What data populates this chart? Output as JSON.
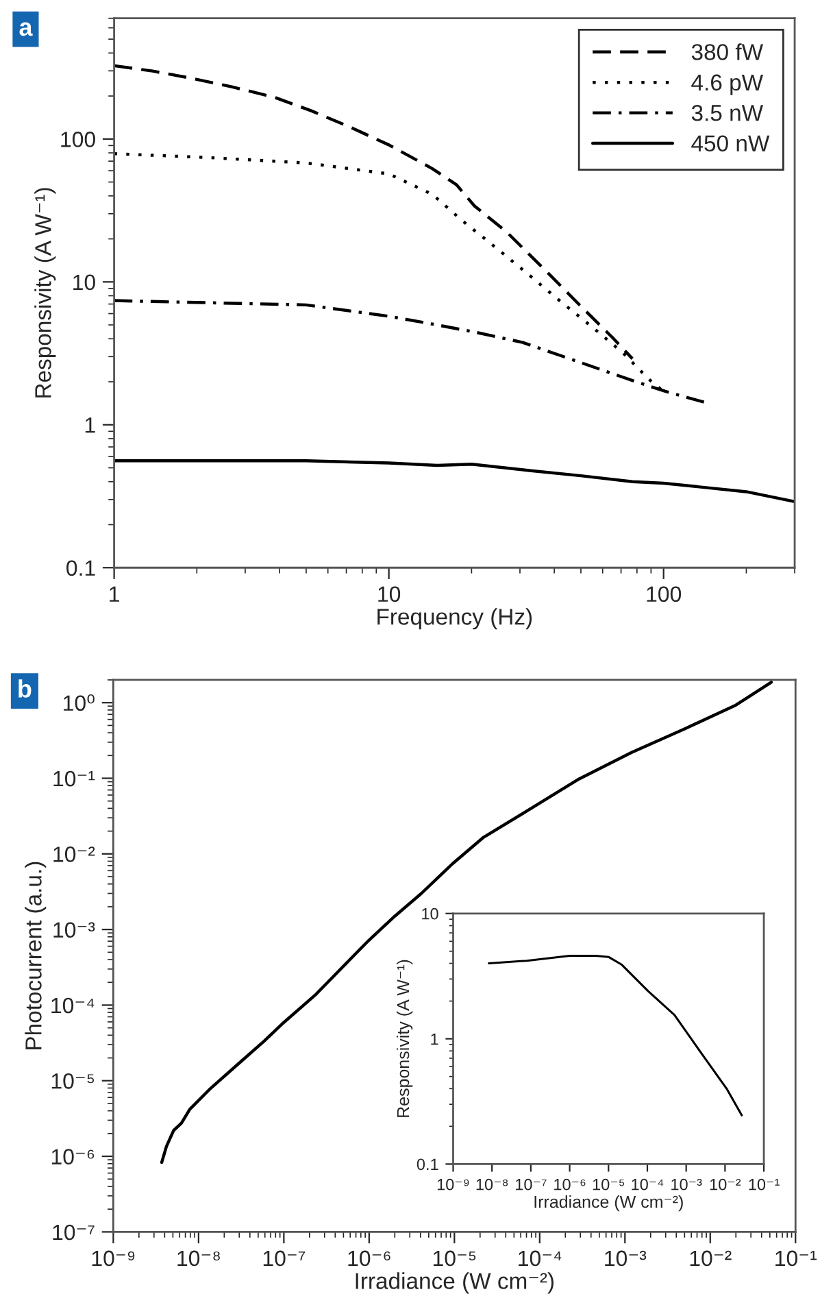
{
  "chart_data": [
    {
      "type": "line",
      "xlabel": "Frequency (Hz)",
      "ylabel": "Responsivity (A W⁻¹)",
      "annotations": [
        "a"
      ],
      "log": "xy",
      "grid": false,
      "legend": "top right",
      "marker": "none",
      "xlim": [
        1,
        300
      ],
      "xticks": [
        1,
        10,
        100
      ],
      "ylim": [
        0.1,
        700
      ],
      "yticks": [
        0.1,
        1,
        10,
        100
      ],
      "series": [
        {
          "name": "380 fW",
          "color": "#000000",
          "line_style": "dashed",
          "x": [
            1,
            1.38,
            1.88,
            2.68,
            3.83,
            5.2,
            7.1,
            10,
            14.4,
            17.6,
            20.5,
            26.8,
            38.2,
            49.8,
            65,
            77
          ],
          "values": [
            326,
            299,
            268,
            232,
            196,
            158,
            123,
            91,
            62,
            48,
            34,
            22.4,
            11.4,
            6.8,
            4.1,
            2.9
          ]
        },
        {
          "name": "4.6 pW",
          "color": "#000000",
          "line_style": "dotted",
          "x": [
            1,
            2.25,
            5,
            10,
            14.4,
            18.6,
            24.5,
            32,
            41.8,
            54.5,
            71,
            88.5,
            101
          ],
          "values": [
            79,
            74,
            68,
            57,
            41,
            26.6,
            17.4,
            11.4,
            7.4,
            4.9,
            3.2,
            2.08,
            1.68
          ]
        },
        {
          "name": "3.5 nW",
          "color": "#000000",
          "line_style": "dashdot",
          "x": [
            1,
            5,
            10,
            14.4,
            20.5,
            30.7,
            49.8,
            77,
            101,
            144
          ],
          "values": [
            7.4,
            6.9,
            5.75,
            5.07,
            4.46,
            3.77,
            2.73,
            2.04,
            1.72,
            1.42
          ]
        },
        {
          "name": "450 nW",
          "color": "#000000",
          "line_style": "solid",
          "x": [
            1,
            5,
            10,
            15,
            20,
            32,
            50,
            77,
            100,
            200,
            300
          ],
          "values": [
            0.56,
            0.56,
            0.54,
            0.52,
            0.53,
            0.48,
            0.44,
            0.4,
            0.39,
            0.34,
            0.29
          ]
        }
      ]
    },
    {
      "type": "line",
      "xlabel": "Irradiance (W cm⁻²)",
      "ylabel": "Photocurrent (a.u.)",
      "annotations": [
        "b"
      ],
      "log": "xy",
      "grid": false,
      "marker": "none",
      "xlim": [
        1e-09,
        0.1
      ],
      "xticks": [
        {
          "value": 1e-09,
          "label": "10⁻⁹"
        },
        {
          "value": 1e-08,
          "label": "10⁻⁸"
        },
        {
          "value": 1e-07,
          "label": "10⁻⁷"
        },
        {
          "value": 1e-06,
          "label": "10⁻⁶"
        },
        {
          "value": 1e-05,
          "label": "10⁻⁵"
        },
        {
          "value": 0.0001,
          "label": "10⁻⁴"
        },
        {
          "value": 0.001,
          "label": "10⁻³"
        },
        {
          "value": 0.01,
          "label": "10⁻²"
        },
        {
          "value": 0.1,
          "label": "10⁻¹"
        }
      ],
      "ylim": [
        1e-07,
        2
      ],
      "yticks": [
        {
          "value": 1e-07,
          "label": "10⁻⁷"
        },
        {
          "value": 1e-06,
          "label": "10⁻⁶"
        },
        {
          "value": 1e-05,
          "label": "10⁻⁵"
        },
        {
          "value": 0.0001,
          "label": "10⁻⁴"
        },
        {
          "value": 0.001,
          "label": "10⁻³"
        },
        {
          "value": 0.01,
          "label": "10⁻²"
        },
        {
          "value": 0.1,
          "label": "10⁻¹"
        },
        {
          "value": 1,
          "label": "10⁰"
        }
      ],
      "series": [
        {
          "color": "#000000",
          "line_style": "solid",
          "x": [
            3.7e-09,
            4.2e-09,
            5.1e-09,
            6.3e-09,
            7.9e-09,
            1.38e-08,
            2.8e-08,
            5.8e-08,
            1e-07,
            2.4e-07,
            4.9e-07,
            9.8e-07,
            2e-06,
            4.1e-06,
            9.5e-06,
            2.2e-05,
            7.1e-05,
            0.00029,
            0.0012,
            0.005,
            0.02,
            0.052
          ],
          "values": [
            8.3e-07,
            1.35e-06,
            2.2e-06,
            2.75e-06,
            4.2e-06,
            7.9e-06,
            1.6e-05,
            3.3e-05,
            5.9e-05,
            0.00014,
            0.00032,
            0.00071,
            0.0015,
            0.003,
            0.0074,
            0.0166,
            0.037,
            0.098,
            0.22,
            0.45,
            0.93,
            1.86
          ]
        }
      ]
    },
    {
      "type": "line",
      "xlabel": "Irradiance (W cm⁻²)",
      "ylabel": "Responsivity (A W⁻¹)",
      "log": "xy",
      "grid": false,
      "marker": "none",
      "xlim": [
        1e-09,
        0.1
      ],
      "xticks": [
        {
          "value": 1e-09,
          "label": "10⁻⁹"
        },
        {
          "value": 1e-08,
          "label": "10⁻⁸"
        },
        {
          "value": 1e-07,
          "label": "10⁻⁷"
        },
        {
          "value": 1e-06,
          "label": "10⁻⁶"
        },
        {
          "value": 1e-05,
          "label": "10⁻⁵"
        },
        {
          "value": 0.0001,
          "label": "10⁻⁴"
        },
        {
          "value": 0.001,
          "label": "10⁻³"
        },
        {
          "value": 0.01,
          "label": "10⁻²"
        },
        {
          "value": 0.1,
          "label": "10⁻¹"
        }
      ],
      "ylim": [
        0.1,
        10
      ],
      "yticks": [
        0.1,
        1,
        10
      ],
      "series": [
        {
          "color": "#000000",
          "line_style": "solid",
          "x": [
            8.3e-09,
            7.9e-08,
            1e-06,
            4.7e-06,
            1e-05,
            2.2e-05,
            0.000105,
            0.0005,
            0.0023,
            0.011,
            0.027
          ],
          "values": [
            4.0,
            4.2,
            4.6,
            4.6,
            4.5,
            3.9,
            2.4,
            1.55,
            0.79,
            0.4,
            0.245
          ]
        }
      ]
    }
  ]
}
